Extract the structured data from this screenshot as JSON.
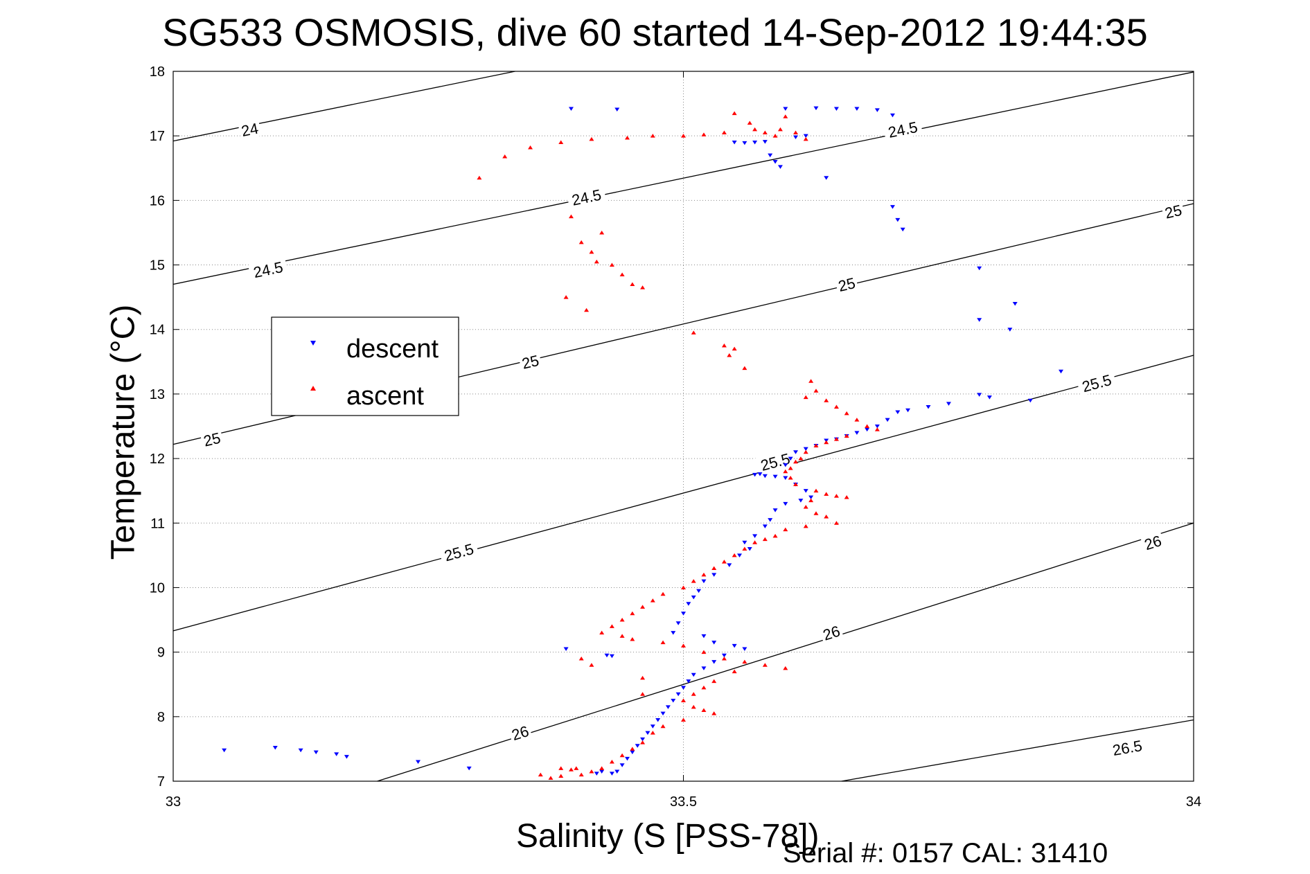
{
  "chart_data": {
    "type": "scatter",
    "title": "SG533 OSMOSIS, dive 60 started 14-Sep-2012 19:44:35",
    "xlabel": "Salinity (S [PSS-78])",
    "ylabel": "Temperature (°C)",
    "xlim": [
      33,
      34
    ],
    "ylim": [
      7,
      18
    ],
    "xticks": [
      33,
      33.5,
      34
    ],
    "xtick_labels": [
      "33",
      "33.5",
      "34"
    ],
    "yticks": [
      7,
      8,
      9,
      10,
      11,
      12,
      13,
      14,
      15,
      16,
      17,
      18
    ],
    "ytick_labels": [
      "7",
      "8",
      "9",
      "10",
      "11",
      "12",
      "13",
      "14",
      "15",
      "16",
      "17",
      "18"
    ],
    "grid": true,
    "legend_position": "left",
    "footer": "Serial #: 0157  CAL: 31410",
    "contours": [
      {
        "label": "24",
        "points": [
          [
            33,
            16.92
          ],
          [
            33.335,
            18
          ]
        ],
        "label_at": [
          [
            33.075,
            17.1
          ]
        ]
      },
      {
        "label": "24.5",
        "points": [
          [
            33,
            14.7
          ],
          [
            34,
            17.99
          ]
        ],
        "label_at": [
          [
            33.093,
            14.93
          ],
          [
            33.405,
            16.05
          ],
          [
            33.715,
            17.1
          ]
        ]
      },
      {
        "label": "25",
        "points": [
          [
            33,
            12.22
          ],
          [
            34,
            15.95
          ]
        ],
        "label_at": [
          [
            33.038,
            12.3
          ],
          [
            33.35,
            13.5
          ],
          [
            33.66,
            14.7
          ],
          [
            33.98,
            15.83
          ]
        ]
      },
      {
        "label": "25.5",
        "points": [
          [
            33,
            9.33
          ],
          [
            34,
            13.6
          ]
        ],
        "label_at": [
          [
            33.28,
            10.55
          ],
          [
            33.59,
            11.95
          ],
          [
            33.905,
            13.17
          ]
        ]
      },
      {
        "label": "26",
        "points": [
          [
            33.2,
            7
          ],
          [
            34,
            11.0
          ]
        ],
        "label_at": [
          [
            33.34,
            7.75
          ],
          [
            33.645,
            9.3
          ],
          [
            33.96,
            10.7
          ]
        ]
      },
      {
        "label": "26.5",
        "points": [
          [
            33.655,
            7
          ],
          [
            34,
            7.95
          ]
        ],
        "label_at": [
          [
            33.935,
            7.52
          ]
        ]
      }
    ],
    "series": [
      {
        "name": "descent",
        "marker": "down-triangle",
        "color": "#0000ff",
        "points": [
          [
            33.39,
            17.42
          ],
          [
            33.435,
            17.41
          ],
          [
            33.55,
            16.9
          ],
          [
            33.56,
            16.89
          ],
          [
            33.57,
            16.9
          ],
          [
            33.58,
            16.91
          ],
          [
            33.585,
            16.7
          ],
          [
            33.59,
            16.6
          ],
          [
            33.595,
            16.52
          ],
          [
            33.61,
            16.98
          ],
          [
            33.62,
            17.0
          ],
          [
            33.6,
            17.42
          ],
          [
            33.63,
            17.43
          ],
          [
            33.65,
            17.42
          ],
          [
            33.67,
            17.42
          ],
          [
            33.69,
            17.4
          ],
          [
            33.705,
            17.32
          ],
          [
            33.64,
            16.35
          ],
          [
            33.705,
            15.9
          ],
          [
            33.71,
            15.7
          ],
          [
            33.715,
            15.55
          ],
          [
            33.79,
            14.95
          ],
          [
            33.79,
            14.15
          ],
          [
            33.82,
            14.0
          ],
          [
            33.825,
            14.4
          ],
          [
            33.87,
            13.35
          ],
          [
            33.79,
            12.99
          ],
          [
            33.8,
            12.95
          ],
          [
            33.84,
            12.9
          ],
          [
            33.76,
            12.85
          ],
          [
            33.74,
            12.8
          ],
          [
            33.72,
            12.75
          ],
          [
            33.71,
            12.72
          ],
          [
            33.7,
            12.6
          ],
          [
            33.69,
            12.5
          ],
          [
            33.68,
            12.45
          ],
          [
            33.67,
            12.4
          ],
          [
            33.66,
            12.35
          ],
          [
            33.65,
            12.3
          ],
          [
            33.64,
            12.28
          ],
          [
            33.63,
            12.2
          ],
          [
            33.62,
            12.15
          ],
          [
            33.61,
            12.1
          ],
          [
            33.605,
            12.0
          ],
          [
            33.6,
            11.9
          ],
          [
            33.57,
            11.75
          ],
          [
            33.575,
            11.76
          ],
          [
            33.58,
            11.73
          ],
          [
            33.59,
            11.72
          ],
          [
            33.6,
            11.7
          ],
          [
            33.61,
            11.6
          ],
          [
            33.62,
            11.5
          ],
          [
            33.625,
            11.4
          ],
          [
            33.615,
            11.35
          ],
          [
            33.6,
            11.3
          ],
          [
            33.59,
            11.2
          ],
          [
            33.585,
            11.05
          ],
          [
            33.58,
            10.95
          ],
          [
            33.57,
            10.8
          ],
          [
            33.56,
            10.7
          ],
          [
            33.565,
            10.6
          ],
          [
            33.555,
            10.5
          ],
          [
            33.545,
            10.35
          ],
          [
            33.53,
            10.2
          ],
          [
            33.52,
            10.1
          ],
          [
            33.515,
            9.95
          ],
          [
            33.51,
            9.85
          ],
          [
            33.505,
            9.75
          ],
          [
            33.5,
            9.6
          ],
          [
            33.495,
            9.45
          ],
          [
            33.49,
            9.3
          ],
          [
            33.52,
            9.25
          ],
          [
            33.53,
            9.15
          ],
          [
            33.55,
            9.1
          ],
          [
            33.56,
            9.05
          ],
          [
            33.54,
            8.95
          ],
          [
            33.53,
            8.85
          ],
          [
            33.52,
            8.75
          ],
          [
            33.51,
            8.65
          ],
          [
            33.505,
            8.55
          ],
          [
            33.5,
            8.45
          ],
          [
            33.495,
            8.35
          ],
          [
            33.49,
            8.25
          ],
          [
            33.485,
            8.15
          ],
          [
            33.48,
            8.05
          ],
          [
            33.475,
            7.95
          ],
          [
            33.47,
            7.85
          ],
          [
            33.465,
            7.75
          ],
          [
            33.46,
            7.65
          ],
          [
            33.455,
            7.55
          ],
          [
            33.45,
            7.45
          ],
          [
            33.445,
            7.35
          ],
          [
            33.44,
            7.25
          ],
          [
            33.435,
            7.15
          ],
          [
            33.43,
            7.12
          ],
          [
            33.425,
            8.95
          ],
          [
            33.43,
            8.94
          ],
          [
            33.385,
            9.05
          ],
          [
            33.05,
            7.48
          ],
          [
            33.1,
            7.52
          ],
          [
            33.125,
            7.48
          ],
          [
            33.14,
            7.45
          ],
          [
            33.16,
            7.42
          ],
          [
            33.17,
            7.38
          ],
          [
            33.24,
            7.3
          ],
          [
            33.29,
            7.2
          ],
          [
            33.42,
            7.15
          ],
          [
            33.415,
            7.12
          ]
        ]
      },
      {
        "name": "ascent",
        "marker": "up-triangle",
        "color": "#ff0000",
        "points": [
          [
            33.3,
            16.35
          ],
          [
            33.325,
            16.68
          ],
          [
            33.35,
            16.82
          ],
          [
            33.38,
            16.9
          ],
          [
            33.41,
            16.95
          ],
          [
            33.445,
            16.97
          ],
          [
            33.47,
            17.0
          ],
          [
            33.5,
            17.0
          ],
          [
            33.52,
            17.02
          ],
          [
            33.54,
            17.05
          ],
          [
            33.55,
            17.35
          ],
          [
            33.565,
            17.2
          ],
          [
            33.57,
            17.1
          ],
          [
            33.58,
            17.05
          ],
          [
            33.59,
            17.0
          ],
          [
            33.595,
            17.1
          ],
          [
            33.6,
            17.3
          ],
          [
            33.61,
            17.05
          ],
          [
            33.62,
            16.95
          ],
          [
            33.39,
            15.75
          ],
          [
            33.4,
            15.35
          ],
          [
            33.42,
            15.5
          ],
          [
            33.41,
            15.2
          ],
          [
            33.415,
            15.05
          ],
          [
            33.43,
            15.0
          ],
          [
            33.44,
            14.85
          ],
          [
            33.45,
            14.7
          ],
          [
            33.46,
            14.65
          ],
          [
            33.385,
            14.5
          ],
          [
            33.405,
            14.3
          ],
          [
            33.51,
            13.95
          ],
          [
            33.54,
            13.75
          ],
          [
            33.55,
            13.7
          ],
          [
            33.545,
            13.6
          ],
          [
            33.56,
            13.4
          ],
          [
            33.62,
            12.95
          ],
          [
            33.625,
            13.2
          ],
          [
            33.63,
            13.05
          ],
          [
            33.64,
            12.9
          ],
          [
            33.65,
            12.8
          ],
          [
            33.66,
            12.7
          ],
          [
            33.67,
            12.6
          ],
          [
            33.68,
            12.5
          ],
          [
            33.69,
            12.45
          ],
          [
            33.66,
            12.35
          ],
          [
            33.65,
            12.3
          ],
          [
            33.64,
            12.25
          ],
          [
            33.63,
            12.2
          ],
          [
            33.62,
            12.1
          ],
          [
            33.615,
            12.0
          ],
          [
            33.61,
            11.95
          ],
          [
            33.605,
            11.85
          ],
          [
            33.6,
            11.8
          ],
          [
            33.605,
            11.7
          ],
          [
            33.61,
            11.6
          ],
          [
            33.63,
            11.5
          ],
          [
            33.64,
            11.45
          ],
          [
            33.65,
            11.42
          ],
          [
            33.66,
            11.4
          ],
          [
            33.625,
            11.35
          ],
          [
            33.62,
            11.25
          ],
          [
            33.63,
            11.15
          ],
          [
            33.64,
            11.1
          ],
          [
            33.65,
            11.0
          ],
          [
            33.62,
            10.95
          ],
          [
            33.6,
            10.9
          ],
          [
            33.59,
            10.8
          ],
          [
            33.58,
            10.75
          ],
          [
            33.57,
            10.7
          ],
          [
            33.56,
            10.6
          ],
          [
            33.55,
            10.5
          ],
          [
            33.54,
            10.4
          ],
          [
            33.53,
            10.3
          ],
          [
            33.52,
            10.2
          ],
          [
            33.51,
            10.1
          ],
          [
            33.5,
            10.0
          ],
          [
            33.48,
            9.9
          ],
          [
            33.47,
            9.8
          ],
          [
            33.46,
            9.7
          ],
          [
            33.45,
            9.6
          ],
          [
            33.44,
            9.5
          ],
          [
            33.43,
            9.4
          ],
          [
            33.42,
            9.3
          ],
          [
            33.44,
            9.25
          ],
          [
            33.45,
            9.2
          ],
          [
            33.48,
            9.15
          ],
          [
            33.5,
            9.1
          ],
          [
            33.52,
            9.0
          ],
          [
            33.54,
            8.9
          ],
          [
            33.56,
            8.85
          ],
          [
            33.58,
            8.8
          ],
          [
            33.6,
            8.75
          ],
          [
            33.55,
            8.7
          ],
          [
            33.53,
            8.55
          ],
          [
            33.52,
            8.45
          ],
          [
            33.51,
            8.35
          ],
          [
            33.5,
            8.25
          ],
          [
            33.51,
            8.15
          ],
          [
            33.52,
            8.1
          ],
          [
            33.53,
            8.05
          ],
          [
            33.5,
            7.95
          ],
          [
            33.48,
            7.85
          ],
          [
            33.47,
            7.75
          ],
          [
            33.46,
            7.6
          ],
          [
            33.45,
            7.5
          ],
          [
            33.44,
            7.4
          ],
          [
            33.43,
            7.3
          ],
          [
            33.42,
            7.2
          ],
          [
            33.41,
            7.15
          ],
          [
            33.4,
            7.1
          ],
          [
            33.38,
            7.08
          ],
          [
            33.37,
            7.05
          ],
          [
            33.36,
            7.1
          ],
          [
            33.4,
            8.9
          ],
          [
            33.41,
            8.8
          ],
          [
            33.395,
            7.2
          ],
          [
            33.39,
            7.18
          ],
          [
            33.46,
            8.6
          ],
          [
            33.46,
            8.35
          ],
          [
            33.38,
            7.2
          ]
        ]
      }
    ]
  },
  "legend": {
    "items": [
      {
        "label": "descent",
        "color": "#0000ff"
      },
      {
        "label": "ascent",
        "color": "#ff0000"
      }
    ]
  }
}
